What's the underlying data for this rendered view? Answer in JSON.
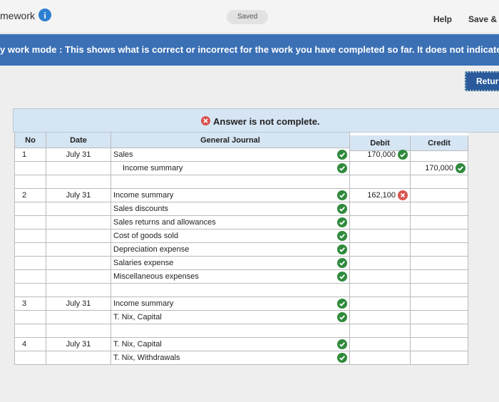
{
  "header": {
    "title": "mework",
    "status": "Saved",
    "help": "Help",
    "save": "Save & E"
  },
  "banner": {
    "text": "y work mode : This shows what is correct or incorrect for the work you have completed so far. It does not indicate c"
  },
  "return_button": "Return",
  "journal": {
    "message": "Answer is not complete.",
    "columns": [
      "No",
      "Date",
      "General Journal",
      "Debit",
      "Credit"
    ],
    "entries": [
      {
        "no": "1",
        "date": "July 31",
        "lines": [
          {
            "account": "Sales",
            "status": "correct",
            "debit": "170,000",
            "debit_status": "correct"
          },
          {
            "account": "Income summary",
            "indent": true,
            "status": "correct",
            "credit": "170,000",
            "credit_status": "correct"
          }
        ]
      },
      {
        "no": "2",
        "date": "July 31",
        "lines": [
          {
            "account": "Income summary",
            "status": "correct",
            "debit": "162,100",
            "debit_status": "incorrect"
          },
          {
            "account": "Sales discounts",
            "status": "correct"
          },
          {
            "account": "Sales returns and allowances",
            "status": "correct"
          },
          {
            "account": "Cost of goods sold",
            "status": "correct"
          },
          {
            "account": "Depreciation expense",
            "status": "correct"
          },
          {
            "account": "Salaries expense",
            "status": "correct"
          },
          {
            "account": "Miscellaneous expenses",
            "status": "correct"
          }
        ]
      },
      {
        "no": "3",
        "date": "July 31",
        "lines": [
          {
            "account": "Income summary",
            "status": "correct"
          },
          {
            "account": "T. Nix, Capital",
            "status": "correct"
          }
        ]
      },
      {
        "no": "4",
        "date": "July 31",
        "lines": [
          {
            "account": "T. Nix, Capital",
            "status": "correct"
          },
          {
            "account": "T. Nix, Withdrawals",
            "status": "correct"
          }
        ]
      }
    ]
  }
}
